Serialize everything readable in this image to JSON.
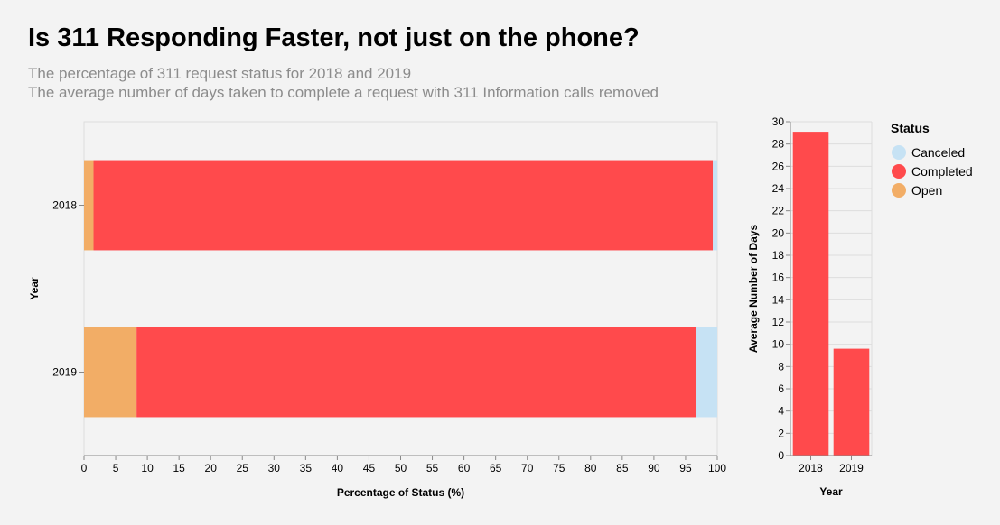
{
  "title": "Is 311 Responding Faster, not just on the phone?",
  "subtitle_lines": [
    "The percentage of 311 request status for 2018 and 2019",
    "The average number of days taken to complete a request with 311 Information calls removed"
  ],
  "colors": {
    "Canceled": "#c6e2f4",
    "Completed": "#ff4a4c",
    "Open": "#f2ad66",
    "background": "#f3f3f3",
    "grid": "#dddddd"
  },
  "legend": {
    "title": "Status",
    "items": [
      "Canceled",
      "Completed",
      "Open"
    ],
    "position": "right"
  },
  "chart_data": [
    {
      "type": "bar",
      "orientation": "horizontal",
      "stacked": true,
      "categories": [
        "2018",
        "2019"
      ],
      "series": [
        {
          "name": "Open",
          "values": [
            1.5,
            8.3
          ]
        },
        {
          "name": "Completed",
          "values": [
            97.8,
            88.4
          ]
        },
        {
          "name": "Canceled",
          "values": [
            0.7,
            3.3
          ]
        }
      ],
      "xlabel": "Percentage of Status (%)",
      "ylabel": "Year",
      "xlim": [
        0,
        100
      ],
      "xticks": [
        0,
        5,
        10,
        15,
        20,
        25,
        30,
        35,
        40,
        45,
        50,
        55,
        60,
        65,
        70,
        75,
        80,
        85,
        90,
        95,
        100
      ],
      "grid": false
    },
    {
      "type": "bar",
      "categories": [
        "2018",
        "2019"
      ],
      "values": [
        29.1,
        9.6
      ],
      "xlabel": "Year",
      "ylabel": "Average Number of Days",
      "ylim": [
        0,
        30
      ],
      "yticks": [
        0,
        2,
        4,
        6,
        8,
        10,
        12,
        14,
        16,
        18,
        20,
        22,
        24,
        26,
        28,
        30
      ],
      "grid": true
    }
  ]
}
